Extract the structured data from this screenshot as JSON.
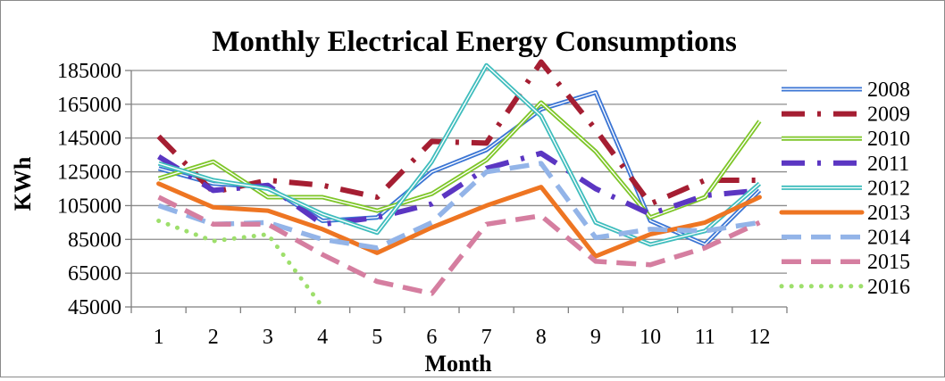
{
  "chart_data": {
    "type": "line",
    "title": "Monthly Electrical Energy Consumptions",
    "xlabel": "Month",
    "ylabel": "KWh",
    "ylim": [
      45000,
      185000
    ],
    "yticks": [
      "185000",
      "165000",
      "145000",
      "125000",
      "105000",
      "85000",
      "65000",
      "45000"
    ],
    "categories": [
      "1",
      "2",
      "3",
      "4",
      "5",
      "6",
      "7",
      "8",
      "9",
      "10",
      "11",
      "12"
    ],
    "grid": "horizontal",
    "legend_position": "right",
    "series": [
      {
        "name": "2008",
        "color": "#3b75d4",
        "style": "double",
        "values": [
          127000,
          118000,
          116000,
          96000,
          98000,
          125000,
          138000,
          162000,
          172000,
          96000,
          82000,
          114000
        ]
      },
      {
        "name": "2009",
        "color": "#a51e32",
        "style": "dash-dot",
        "values": [
          146000,
          113000,
          120000,
          117000,
          110000,
          143000,
          142000,
          190000,
          150000,
          106000,
          120000,
          120000
        ]
      },
      {
        "name": "2010",
        "color": "#7ec628",
        "style": "double",
        "values": [
          121000,
          131000,
          110000,
          110000,
          102000,
          112000,
          132000,
          166000,
          137000,
          98000,
          110000,
          155000
        ]
      },
      {
        "name": "2011",
        "color": "#5b36c2",
        "style": "dash-dot",
        "values": [
          134000,
          114000,
          117000,
          94000,
          98000,
          106000,
          127000,
          136000,
          115000,
          100000,
          111000,
          114000
        ]
      },
      {
        "name": "2012",
        "color": "#3fbdbd",
        "style": "double",
        "values": [
          130000,
          120000,
          115000,
          100000,
          89000,
          131000,
          188000,
          158000,
          95000,
          82000,
          90000,
          118000
        ]
      },
      {
        "name": "2013",
        "color": "#ee7522",
        "style": "solid",
        "values": [
          118000,
          104000,
          102000,
          91000,
          77000,
          92000,
          105000,
          116000,
          75000,
          88000,
          95000,
          110000
        ]
      },
      {
        "name": "2014",
        "color": "#93b4e8",
        "style": "dashed",
        "values": [
          105000,
          94000,
          95000,
          85000,
          80000,
          95000,
          125000,
          130000,
          86000,
          91000,
          90000,
          95000
        ]
      },
      {
        "name": "2015",
        "color": "#d57ea0",
        "style": "dashed",
        "values": [
          110000,
          94000,
          94000,
          76000,
          60000,
          53000,
          94000,
          99000,
          72000,
          70000,
          80000,
          95000
        ]
      },
      {
        "name": "2016",
        "color": "#9edf6c",
        "style": "dotted",
        "values": [
          96000,
          84000,
          88000,
          45000,
          null,
          null,
          null,
          null,
          null,
          null,
          null,
          null
        ]
      }
    ]
  }
}
